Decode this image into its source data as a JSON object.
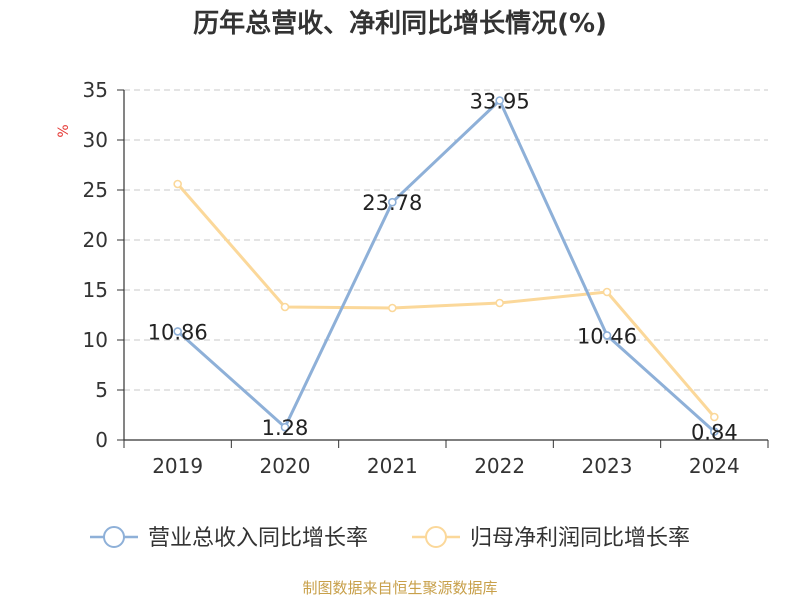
{
  "chart_data": {
    "type": "line",
    "title": "历年总营收、净利同比增长情况(%)",
    "ylabel": "%",
    "xlabel": "",
    "categories": [
      "2019",
      "2020",
      "2021",
      "2022",
      "2023",
      "2024"
    ],
    "ylim": [
      0,
      35
    ],
    "yticks": [
      0,
      5,
      10,
      15,
      20,
      25,
      30,
      35
    ],
    "grid": true,
    "legend_position": "bottom",
    "series": [
      {
        "name": "营业总收入同比增长率",
        "color": "#8eb0d8",
        "values": [
          10.86,
          1.28,
          23.78,
          33.95,
          10.46,
          0.84
        ],
        "data_labels": [
          "10.86",
          "1.28",
          "23.78",
          "33.95",
          "10.46",
          "0.84"
        ]
      },
      {
        "name": "归母净利润同比增长率",
        "color": "#fbd89a",
        "values": [
          25.6,
          13.3,
          13.2,
          13.7,
          14.8,
          2.3
        ]
      }
    ]
  },
  "source_text": "制图数据来自恒生聚源数据库"
}
